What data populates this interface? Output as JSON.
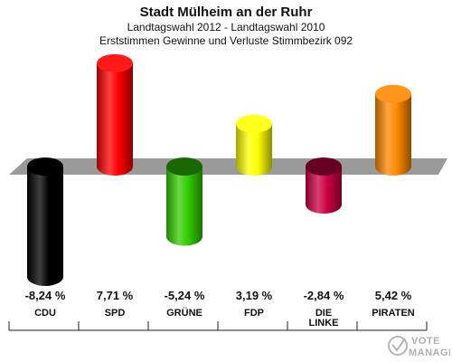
{
  "chart_data": {
    "type": "bar",
    "title": "Stadt Mülheim an der Ruhr",
    "subtitle_1": "Landtagswahl 2012 - Landtagswahl 2010",
    "subtitle_2": "Erststimmen Gewinne und Verluste Stimmbezirk 092",
    "categories": [
      [
        "CDU"
      ],
      [
        "SPD"
      ],
      [
        "GRÜNE"
      ],
      [
        "FDP"
      ],
      [
        "DIE",
        "LINKE"
      ],
      [
        "PIRATEN"
      ]
    ],
    "values": [
      -8.24,
      7.71,
      -5.24,
      3.19,
      -2.84,
      5.42
    ],
    "value_labels": [
      "-8,24 %",
      "7,71 %",
      "-5,24 %",
      "3,19 %",
      "-2,84 %",
      "5,42 %"
    ],
    "colors": [
      "#000000",
      "#ff0000",
      "#33cc00",
      "#ffff00",
      "#cc0044",
      "#ff8800"
    ],
    "ylim": [
      -9,
      9
    ],
    "grid": false,
    "legend": "none"
  },
  "watermark": {
    "line1": "VOTE",
    "line2": "MANAGER",
    "icon": "vote-manager-logo-icon"
  }
}
